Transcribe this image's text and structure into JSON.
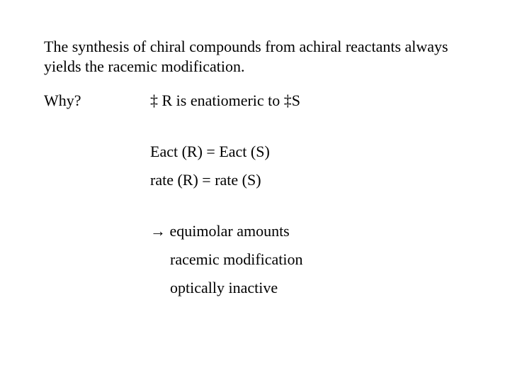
{
  "statement": "The synthesis of chiral compounds from achiral reactants always yields the racemic modification.",
  "why_label": "Why?",
  "line_ts": "‡ R  is enatiomeric to ‡S",
  "line_eact": "Eact (R)  =  Eact (S)",
  "line_rate": "rate (R)  =   rate (S)",
  "line_arrow": "→ equimolar amounts",
  "line_racemic": "racemic modification",
  "line_optical": "optically inactive",
  "colors": {
    "background": "#ffffff",
    "text": "#000000"
  },
  "typography": {
    "font_family": "Times New Roman",
    "font_size_pt": 16
  }
}
